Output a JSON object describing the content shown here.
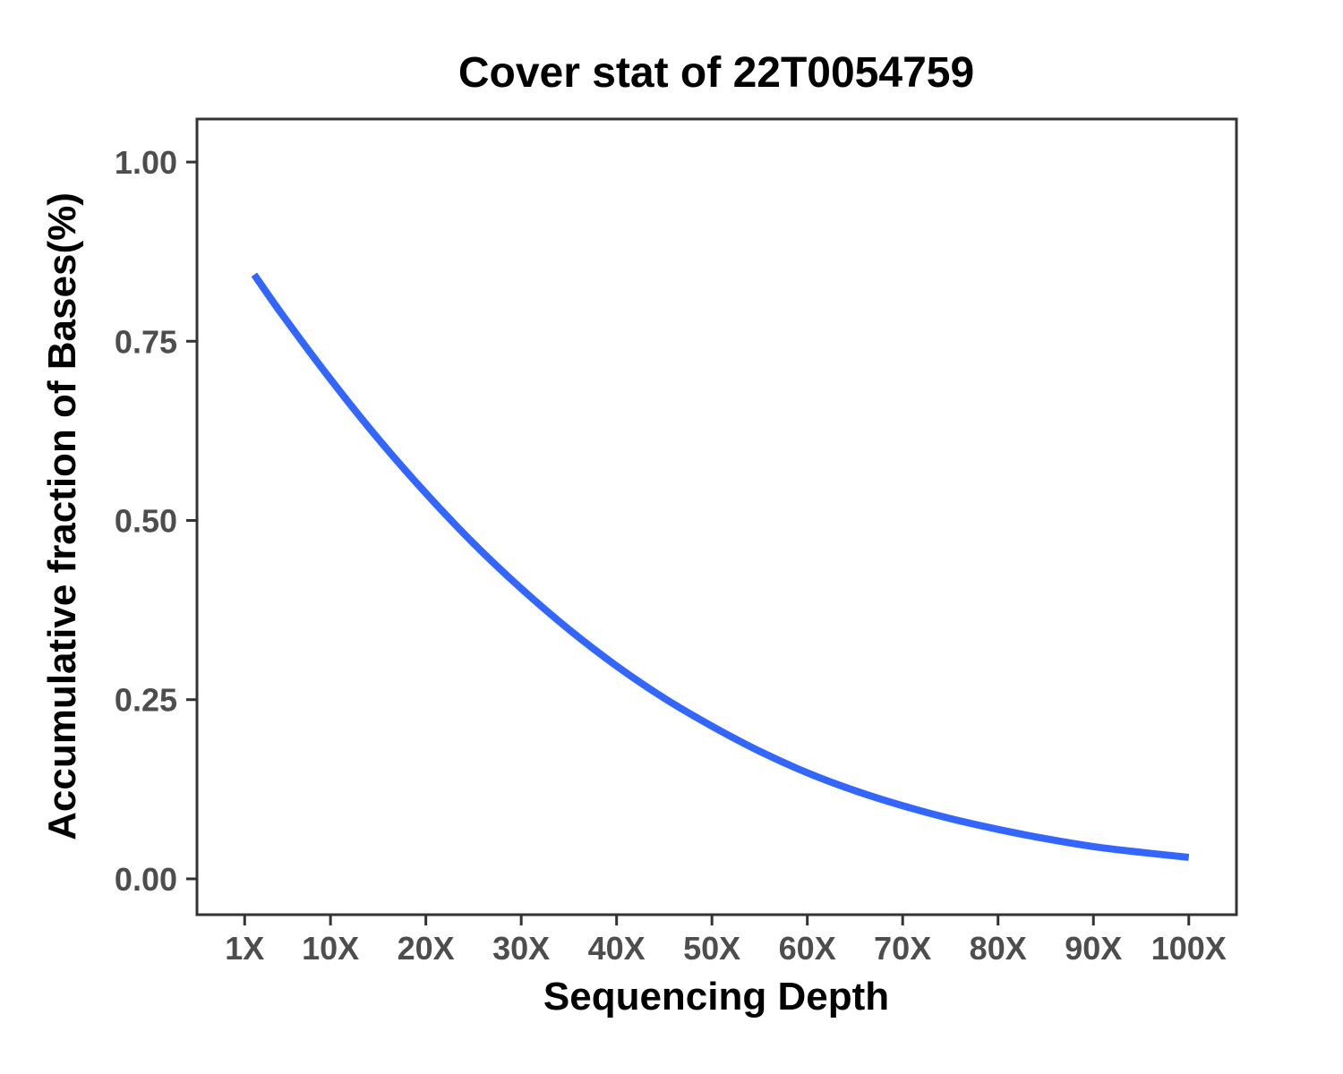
{
  "chart_data": {
    "type": "line",
    "title": "Cover stat of 22T0054759",
    "xlabel": "Sequencing Depth",
    "ylabel": "Accumulative fraction of Bases(%)",
    "x_ticks": [
      1,
      10,
      20,
      30,
      40,
      50,
      60,
      70,
      80,
      90,
      100
    ],
    "x_tick_labels": [
      "1X",
      "10X",
      "20X",
      "30X",
      "40X",
      "50X",
      "60X",
      "70X",
      "80X",
      "90X",
      "100X"
    ],
    "y_ticks": [
      0,
      0.25,
      0.5,
      0.75,
      1.0
    ],
    "y_tick_labels": [
      "0.00",
      "0.25",
      "0.50",
      "0.75",
      "1.00"
    ],
    "xlim": [
      -4,
      105
    ],
    "ylim": [
      -0.05,
      1.06
    ],
    "grid": false,
    "legend": "none",
    "series": [
      {
        "color": "#3366ff",
        "x": [
          2,
          5,
          10,
          15,
          20,
          25,
          30,
          35,
          40,
          45,
          50,
          55,
          60,
          65,
          70,
          75,
          80,
          85,
          90,
          95,
          100
        ],
        "y": [
          0.843,
          0.786,
          0.697,
          0.614,
          0.538,
          0.468,
          0.405,
          0.348,
          0.297,
          0.252,
          0.213,
          0.178,
          0.148,
          0.123,
          0.102,
          0.084,
          0.069,
          0.056,
          0.045,
          0.037,
          0.03
        ]
      }
    ]
  }
}
